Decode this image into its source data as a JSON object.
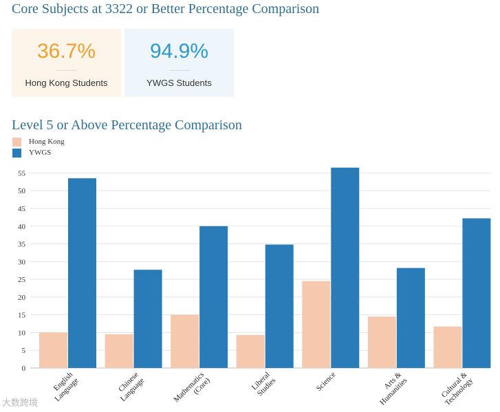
{
  "header1": "Core Subjects at 3322 or Better Percentage Comparison",
  "stats": [
    {
      "value": "36.7%",
      "label": "Hong Kong Students",
      "color": "#f0a030"
    },
    {
      "value": "94.9%",
      "label": "YWGS Students",
      "color": "#2a9ad0"
    }
  ],
  "header2": "Level 5 or Above Percentage Comparison",
  "watermark": "大数跨境",
  "chart_data": {
    "type": "bar",
    "title": "Level 5 or Above Percentage Comparison",
    "categories": [
      [
        "English",
        "Language"
      ],
      [
        "Chinese",
        "Language"
      ],
      [
        "Mathematics",
        "(Core)"
      ],
      [
        "Liberal",
        "Studies"
      ],
      [
        "Science"
      ],
      [
        "Arts &",
        "Humanities"
      ],
      [
        "Cultural &",
        "Technology"
      ]
    ],
    "series": [
      {
        "name": "Hong Kong",
        "color": "#f6c8ae",
        "values": [
          10,
          9.5,
          15,
          9.3,
          24.5,
          14.5,
          11.7
        ]
      },
      {
        "name": "YWGS",
        "color": "#2a7cb8",
        "values": [
          53.5,
          27.7,
          40,
          34.8,
          56.5,
          28.2,
          42.2
        ]
      }
    ],
    "yticks": [
      0,
      5,
      10,
      15,
      20,
      25,
      30,
      35,
      40,
      45,
      50,
      55
    ],
    "ylim": [
      0,
      57.8
    ],
    "legend_position": "top-left",
    "grid": true
  }
}
